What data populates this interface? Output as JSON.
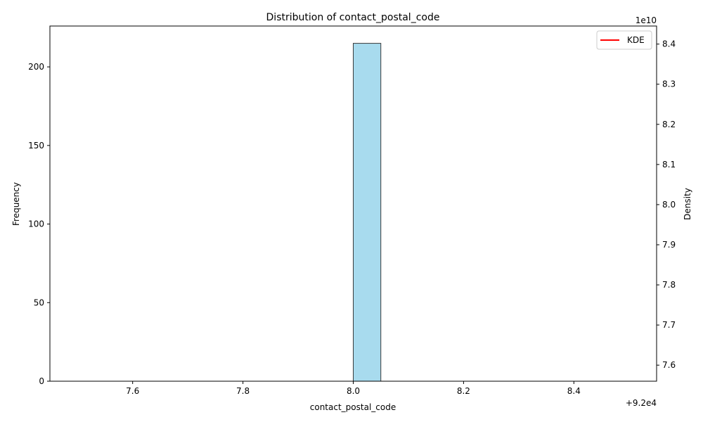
{
  "chart_data": {
    "type": "bar",
    "title": "Distribution of contact_postal_code",
    "xlabel": "contact_postal_code",
    "ylabel_left": "Frequency",
    "ylabel_right": "Density",
    "x_offset_label": "+9.2e4",
    "right_scale_label": "1e10",
    "xlim": [
      7.45,
      8.55
    ],
    "ylim_left": [
      0,
      226
    ],
    "ylim_right": [
      7.56,
      8.445
    ],
    "x_ticks": [
      7.6,
      7.8,
      8.0,
      8.2,
      8.4
    ],
    "x_tick_labels": [
      "7.6",
      "7.8",
      "8.0",
      "8.2",
      "8.4"
    ],
    "y_ticks_left": [
      0,
      50,
      100,
      150,
      200
    ],
    "y_tick_labels_left": [
      "0",
      "50",
      "100",
      "150",
      "200"
    ],
    "y_ticks_right": [
      7.6,
      7.7,
      7.8,
      7.9,
      8.0,
      8.1,
      8.2,
      8.3,
      8.4
    ],
    "y_tick_labels_right": [
      "7.6",
      "7.7",
      "7.8",
      "7.9",
      "8.0",
      "8.1",
      "8.2",
      "8.3",
      "8.4"
    ],
    "bins": [
      {
        "x0": 7.5,
        "x1": 7.55,
        "count": 0
      },
      {
        "x0": 7.55,
        "x1": 7.6,
        "count": 0
      },
      {
        "x0": 7.6,
        "x1": 7.65,
        "count": 0
      },
      {
        "x0": 7.65,
        "x1": 7.7,
        "count": 0
      },
      {
        "x0": 7.7,
        "x1": 7.75,
        "count": 0
      },
      {
        "x0": 7.75,
        "x1": 7.8,
        "count": 0
      },
      {
        "x0": 7.8,
        "x1": 7.85,
        "count": 0
      },
      {
        "x0": 7.85,
        "x1": 7.9,
        "count": 0
      },
      {
        "x0": 7.9,
        "x1": 7.95,
        "count": 0
      },
      {
        "x0": 7.95,
        "x1": 8.0,
        "count": 0
      },
      {
        "x0": 8.0,
        "x1": 8.05,
        "count": 215
      },
      {
        "x0": 8.05,
        "x1": 8.1,
        "count": 0
      },
      {
        "x0": 8.1,
        "x1": 8.15,
        "count": 0
      },
      {
        "x0": 8.15,
        "x1": 8.2,
        "count": 0
      },
      {
        "x0": 8.2,
        "x1": 8.25,
        "count": 0
      },
      {
        "x0": 8.25,
        "x1": 8.3,
        "count": 0
      },
      {
        "x0": 8.3,
        "x1": 8.35,
        "count": 0
      },
      {
        "x0": 8.35,
        "x1": 8.4,
        "count": 0
      },
      {
        "x0": 8.4,
        "x1": 8.45,
        "count": 0
      },
      {
        "x0": 8.45,
        "x1": 8.5,
        "count": 0
      }
    ],
    "legend": [
      {
        "name": "KDE",
        "color": "#ff0000"
      }
    ],
    "legend_position": "top-right",
    "grid": false,
    "colors": {
      "bar_fill": "#a8dbee",
      "bar_edge": "#3a3a3a",
      "kde": "#ff0000"
    }
  }
}
